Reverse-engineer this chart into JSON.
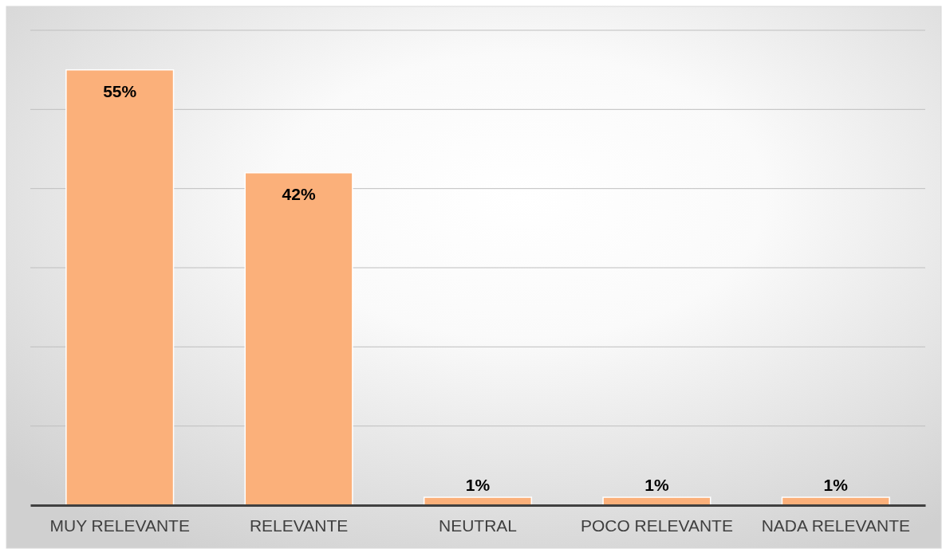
{
  "chart_data": {
    "type": "bar",
    "categories": [
      "MUY RELEVANTE",
      "RELEVANTE",
      "NEUTRAL",
      "POCO RELEVANTE",
      "NADA RELEVANTE"
    ],
    "values": [
      55,
      42,
      1,
      1,
      1
    ],
    "value_labels": [
      "55%",
      "42%",
      "1%",
      "1%",
      "1%"
    ],
    "color": "#fbb07a",
    "ylim": [
      0,
      60
    ],
    "yticks": [
      {
        "value": 0,
        "label": null
      },
      {
        "value": 10,
        "label": null
      },
      {
        "value": 20,
        "label": null
      },
      {
        "value": 30,
        "label": null
      },
      {
        "value": 40,
        "label": null
      },
      {
        "value": 50,
        "label": null
      },
      {
        "value": 60,
        "label": null
      }
    ],
    "grid": "y",
    "tick_labels": "x"
  }
}
